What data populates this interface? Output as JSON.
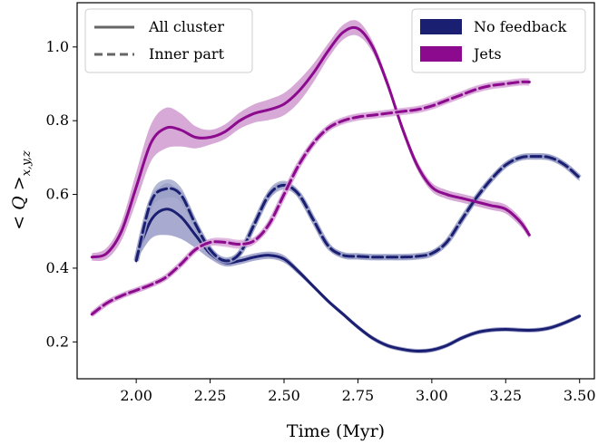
{
  "chart_data": {
    "type": "line",
    "xlabel": "Time (Myr)",
    "ylabel": "< Q >",
    "ylabel_subscript": "x,y,z",
    "xlim": [
      1.8,
      3.55
    ],
    "ylim": [
      0.1,
      1.12
    ],
    "xticks": [
      "2.00",
      "2.25",
      "2.50",
      "2.75",
      "3.00",
      "3.25",
      "3.50"
    ],
    "yticks": [
      "0.2",
      "0.4",
      "0.6",
      "0.8",
      "1.0"
    ],
    "legend_linestyle": [
      {
        "label": "All cluster",
        "style": "solid"
      },
      {
        "label": "Inner part",
        "style": "dashed"
      }
    ],
    "legend_color": [
      {
        "label": "No feedback",
        "color": "#1b1f72"
      },
      {
        "label": "Jets",
        "color": "#8b0a8d"
      }
    ],
    "series": [
      {
        "name": "No feedback",
        "part": "All cluster",
        "style": "solid",
        "color": "#1b1f72",
        "band_color": "#8b8fbf",
        "x": [
          2.0,
          2.05,
          2.1,
          2.15,
          2.2,
          2.25,
          2.3,
          2.35,
          2.4,
          2.45,
          2.5,
          2.55,
          2.6,
          2.65,
          2.7,
          2.75,
          2.8,
          2.85,
          2.9,
          2.95,
          3.0,
          3.05,
          3.1,
          3.15,
          3.2,
          3.25,
          3.3,
          3.35,
          3.4,
          3.45,
          3.5
        ],
        "y": [
          0.43,
          0.53,
          0.56,
          0.54,
          0.49,
          0.44,
          0.415,
          0.42,
          0.43,
          0.435,
          0.425,
          0.39,
          0.35,
          0.31,
          0.275,
          0.24,
          0.21,
          0.19,
          0.18,
          0.175,
          0.178,
          0.19,
          0.21,
          0.225,
          0.232,
          0.234,
          0.232,
          0.232,
          0.238,
          0.252,
          0.27
        ],
        "band": [
          0.01,
          0.05,
          0.07,
          0.06,
          0.035,
          0.015,
          0.01,
          0.01,
          0.01,
          0.01,
          0.01,
          0.008,
          0.006,
          0.006,
          0.006,
          0.006,
          0.006,
          0.006,
          0.006,
          0.006,
          0.006,
          0.006,
          0.006,
          0.006,
          0.006,
          0.006,
          0.006,
          0.006,
          0.006,
          0.006,
          0.006
        ]
      },
      {
        "name": "No feedback",
        "part": "Inner part",
        "style": "dashed",
        "color": "#1b1f72",
        "band_color": "#9aa0c6",
        "x": [
          2.0,
          2.05,
          2.1,
          2.15,
          2.2,
          2.25,
          2.3,
          2.35,
          2.4,
          2.45,
          2.5,
          2.55,
          2.6,
          2.65,
          2.7,
          2.75,
          2.8,
          2.85,
          2.9,
          2.95,
          3.0,
          3.05,
          3.1,
          3.15,
          3.2,
          3.25,
          3.3,
          3.35,
          3.4,
          3.45,
          3.5
        ],
        "y": [
          0.42,
          0.58,
          0.615,
          0.6,
          0.52,
          0.45,
          0.42,
          0.44,
          0.52,
          0.6,
          0.625,
          0.6,
          0.53,
          0.46,
          0.435,
          0.432,
          0.43,
          0.43,
          0.43,
          0.432,
          0.44,
          0.47,
          0.53,
          0.59,
          0.64,
          0.68,
          0.7,
          0.703,
          0.7,
          0.68,
          0.645
        ],
        "band": [
          0.01,
          0.02,
          0.025,
          0.02,
          0.015,
          0.01,
          0.01,
          0.01,
          0.012,
          0.014,
          0.012,
          0.01,
          0.01,
          0.009,
          0.009,
          0.009,
          0.009,
          0.009,
          0.009,
          0.009,
          0.009,
          0.009,
          0.009,
          0.009,
          0.009,
          0.009,
          0.009,
          0.009,
          0.009,
          0.009,
          0.009
        ]
      },
      {
        "name": "Jets",
        "part": "All cluster",
        "style": "solid",
        "color": "#8b0a8d",
        "band_color": "#c98cca",
        "x": [
          1.85,
          1.9,
          1.95,
          2.0,
          2.05,
          2.1,
          2.15,
          2.2,
          2.25,
          2.3,
          2.35,
          2.4,
          2.45,
          2.5,
          2.55,
          2.6,
          2.65,
          2.7,
          2.75,
          2.8,
          2.85,
          2.9,
          2.95,
          3.0,
          3.05,
          3.1,
          3.15,
          3.2,
          3.25,
          3.3,
          3.33
        ],
        "y": [
          0.43,
          0.44,
          0.5,
          0.62,
          0.74,
          0.78,
          0.775,
          0.755,
          0.755,
          0.77,
          0.8,
          0.82,
          0.83,
          0.845,
          0.88,
          0.93,
          0.99,
          1.04,
          1.05,
          1.0,
          0.9,
          0.78,
          0.68,
          0.62,
          0.6,
          0.59,
          0.58,
          0.57,
          0.56,
          0.525,
          0.49
        ],
        "band": [
          0.01,
          0.015,
          0.025,
          0.04,
          0.05,
          0.055,
          0.045,
          0.03,
          0.02,
          0.02,
          0.022,
          0.025,
          0.028,
          0.03,
          0.03,
          0.025,
          0.02,
          0.02,
          0.02,
          0.015,
          0.012,
          0.012,
          0.012,
          0.012,
          0.012,
          0.012,
          0.012,
          0.012,
          0.012,
          0.012,
          0.01
        ]
      },
      {
        "name": "Jets",
        "part": "Inner part",
        "style": "dashed",
        "color": "#8b0a8d",
        "band_color": "#d8a6d8",
        "x": [
          1.85,
          1.9,
          1.95,
          2.0,
          2.05,
          2.1,
          2.15,
          2.2,
          2.25,
          2.3,
          2.35,
          2.4,
          2.45,
          2.5,
          2.55,
          2.6,
          2.65,
          2.7,
          2.75,
          2.8,
          2.85,
          2.9,
          2.95,
          3.0,
          3.05,
          3.1,
          3.15,
          3.2,
          3.25,
          3.3,
          3.33
        ],
        "y": [
          0.275,
          0.305,
          0.325,
          0.34,
          0.355,
          0.375,
          0.41,
          0.45,
          0.47,
          0.47,
          0.465,
          0.475,
          0.52,
          0.6,
          0.68,
          0.74,
          0.78,
          0.8,
          0.81,
          0.815,
          0.82,
          0.825,
          0.83,
          0.84,
          0.855,
          0.87,
          0.885,
          0.895,
          0.9,
          0.905,
          0.905
        ],
        "band": [
          0.008,
          0.008,
          0.008,
          0.008,
          0.008,
          0.008,
          0.008,
          0.008,
          0.01,
          0.012,
          0.012,
          0.01,
          0.01,
          0.01,
          0.01,
          0.01,
          0.01,
          0.01,
          0.01,
          0.01,
          0.01,
          0.01,
          0.01,
          0.01,
          0.01,
          0.01,
          0.01,
          0.01,
          0.01,
          0.01,
          0.01
        ]
      }
    ]
  }
}
